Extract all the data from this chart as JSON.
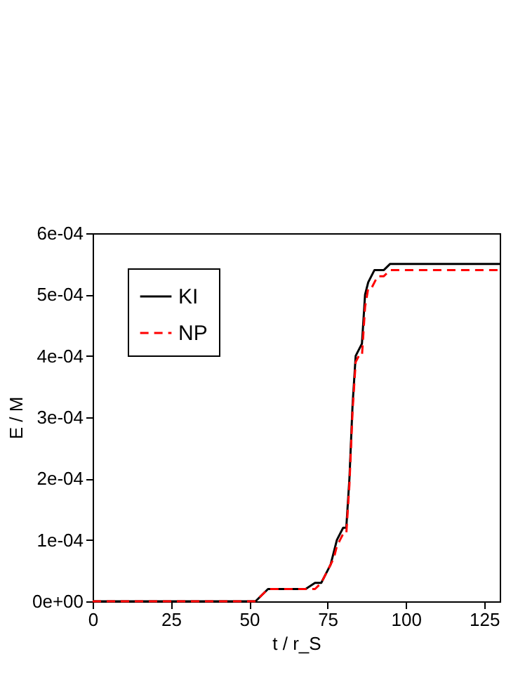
{
  "chart_data": {
    "type": "line",
    "xlabel": "t / r_S",
    "ylabel": "E / M",
    "xlim": [
      0,
      130
    ],
    "xticks": [
      0,
      25,
      50,
      75,
      100,
      125
    ],
    "ylim": [
      0,
      0.0006
    ],
    "yticks": [
      {
        "value": 0,
        "label": "0e+00"
      },
      {
        "value": 0.0001,
        "label": "1e-04"
      },
      {
        "value": 0.0002,
        "label": "2e-04"
      },
      {
        "value": 0.0003,
        "label": "3e-04"
      },
      {
        "value": 0.0004,
        "label": "4e-04"
      },
      {
        "value": 0.0005,
        "label": "5e-04"
      },
      {
        "value": 0.0006,
        "label": "6e-04"
      }
    ],
    "grid": false,
    "legend": "top left",
    "series": [
      {
        "name": "KI",
        "color": "#000000",
        "line_style": "solid",
        "x": [
          0,
          52,
          54,
          56,
          58,
          62,
          68,
          71,
          73,
          75,
          76,
          77,
          78,
          79,
          80,
          81,
          82,
          83,
          84,
          85,
          86,
          87,
          88,
          89,
          90,
          91,
          93,
          95,
          100,
          130
        ],
        "values": [
          0,
          0,
          1e-05,
          2e-05,
          2e-05,
          2e-05,
          2e-05,
          3e-05,
          3e-05,
          5e-05,
          6e-05,
          8e-05,
          0.0001,
          0.00011,
          0.00012,
          0.00012,
          0.0002,
          0.00032,
          0.0004,
          0.00041,
          0.00042,
          0.0005,
          0.00052,
          0.00053,
          0.00054,
          0.00054,
          0.00054,
          0.00055,
          0.00055,
          0.00055
        ]
      },
      {
        "name": "NP",
        "color": "#ff0000",
        "line_style": "dashed",
        "x": [
          0,
          52,
          54,
          56,
          58,
          62,
          68,
          71,
          73,
          75,
          76,
          77,
          78,
          79,
          80,
          81,
          82,
          83,
          84,
          85,
          86,
          87,
          88,
          89,
          90,
          91,
          93,
          95,
          100,
          130
        ],
        "values": [
          0,
          0,
          1e-05,
          2e-05,
          2e-05,
          2e-05,
          2e-05,
          2e-05,
          3e-05,
          5e-05,
          6e-05,
          7e-05,
          9e-05,
          0.0001,
          0.00011,
          0.00011,
          0.00019,
          0.00031,
          0.00039,
          0.0004,
          0.0004,
          0.00048,
          0.00051,
          0.00051,
          0.00052,
          0.00053,
          0.00053,
          0.00054,
          0.00054,
          0.00054
        ]
      }
    ]
  }
}
